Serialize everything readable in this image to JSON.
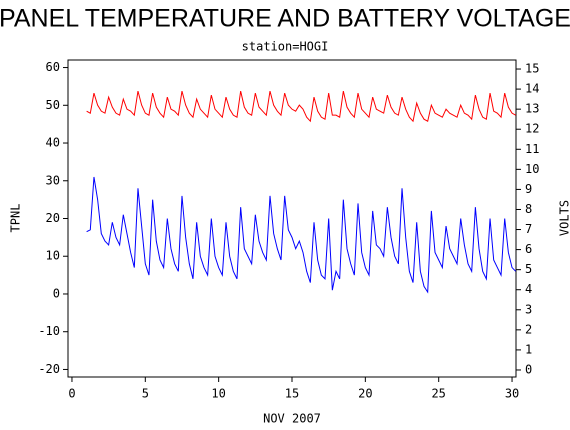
{
  "chart_data": {
    "type": "line",
    "title": "PANEL TEMPERATURE AND BATTERY VOLTAGE",
    "subtitle": "station=HOGI",
    "x_label": "NOV 2007",
    "y_label": "TPNL",
    "y2_label": "VOLTS",
    "xlim": [
      -0.27,
      30.27
    ],
    "xticks": [
      0,
      5,
      10,
      15,
      20,
      25,
      30
    ],
    "ylim": [
      -22,
      62
    ],
    "yticks": [
      -20,
      -10,
      0,
      10,
      20,
      30,
      40,
      50,
      60
    ],
    "y2lim": [
      -0.35,
      15.45
    ],
    "y2ticks": [
      0,
      1,
      2,
      3,
      4,
      5,
      6,
      7,
      8,
      9,
      10,
      11,
      12,
      13,
      14,
      15
    ],
    "x": [
      1,
      1.25,
      1.5,
      1.75,
      2,
      2.25,
      2.5,
      2.75,
      3,
      3.25,
      3.5,
      3.75,
      4,
      4.25,
      4.5,
      4.75,
      5,
      5.25,
      5.5,
      5.75,
      6,
      6.25,
      6.5,
      6.75,
      7,
      7.25,
      7.5,
      7.75,
      8,
      8.25,
      8.5,
      8.75,
      9,
      9.25,
      9.5,
      9.75,
      10,
      10.25,
      10.5,
      10.75,
      11,
      11.25,
      11.5,
      11.75,
      12,
      12.25,
      12.5,
      12.75,
      13,
      13.25,
      13.5,
      13.75,
      14,
      14.25,
      14.5,
      14.75,
      15,
      15.25,
      15.5,
      15.75,
      16,
      16.25,
      16.5,
      16.75,
      17,
      17.25,
      17.5,
      17.75,
      18,
      18.25,
      18.5,
      18.75,
      19,
      19.25,
      19.5,
      19.75,
      20,
      20.25,
      20.5,
      20.75,
      21,
      21.25,
      21.5,
      21.75,
      22,
      22.25,
      22.5,
      22.75,
      23,
      23.25,
      23.5,
      23.75,
      24,
      24.25,
      24.5,
      24.75,
      25,
      25.25,
      25.5,
      25.75,
      26,
      26.25,
      26.5,
      26.75,
      27,
      27.25,
      27.5,
      27.75,
      28,
      28.25,
      28.5,
      28.75,
      29,
      29.25,
      29.5,
      29.75,
      30,
      30.25
    ],
    "series": [
      {
        "color": "#0000ff",
        "values": [
          16.5,
          17,
          31,
          25,
          16,
          14,
          13,
          19,
          15,
          13,
          21,
          16,
          11,
          7,
          28,
          18,
          8,
          5,
          25,
          14,
          9,
          7,
          20,
          12,
          8,
          6,
          26,
          15,
          8,
          4,
          19,
          10,
          7,
          5,
          20,
          10,
          7,
          5,
          19,
          10,
          6,
          4,
          23,
          12,
          10,
          8,
          21,
          14,
          11,
          9,
          26,
          16,
          12,
          9,
          26,
          17,
          15,
          12,
          14,
          11,
          6,
          3,
          19,
          9,
          5,
          4,
          20,
          1,
          6,
          4,
          25,
          12,
          8,
          5,
          24,
          11,
          7,
          5,
          22,
          13,
          12,
          10,
          23,
          15,
          10,
          8,
          28,
          15,
          6,
          3,
          19,
          6,
          2,
          0.5,
          22,
          11,
          9,
          7,
          18,
          12,
          10,
          8,
          20,
          13,
          8,
          6,
          23,
          12,
          6,
          4,
          20,
          9,
          7,
          5,
          20,
          11,
          7,
          6
        ]
      },
      {
        "color": "#ff0000",
        "axis": "y2",
        "values": [
          12.9,
          12.8,
          13.8,
          13.2,
          12.9,
          12.8,
          13.6,
          13.1,
          12.8,
          12.7,
          13.5,
          13.0,
          12.9,
          12.7,
          13.9,
          13.2,
          12.8,
          12.7,
          13.8,
          13.1,
          12.8,
          12.6,
          13.6,
          13.0,
          12.9,
          12.7,
          13.9,
          13.2,
          12.8,
          12.6,
          13.5,
          13.0,
          12.8,
          12.6,
          13.7,
          13.0,
          12.8,
          12.6,
          13.6,
          13.0,
          12.7,
          12.6,
          13.9,
          13.1,
          12.8,
          12.7,
          13.8,
          13.1,
          12.9,
          12.7,
          13.9,
          13.2,
          12.9,
          12.7,
          13.8,
          13.2,
          13.0,
          12.9,
          13.2,
          13.0,
          12.6,
          12.4,
          13.6,
          12.9,
          12.6,
          12.5,
          13.8,
          12.7,
          12.7,
          12.6,
          13.9,
          13.1,
          12.8,
          12.6,
          13.8,
          13.0,
          12.8,
          12.6,
          13.6,
          13.0,
          12.9,
          12.8,
          13.7,
          13.1,
          12.8,
          12.7,
          13.6,
          13.0,
          12.6,
          12.4,
          13.3,
          12.8,
          12.5,
          12.4,
          13.2,
          12.8,
          12.7,
          12.6,
          13.0,
          12.8,
          12.7,
          12.6,
          13.2,
          12.8,
          12.7,
          12.5,
          13.7,
          13.0,
          12.6,
          12.5,
          13.8,
          12.9,
          12.8,
          12.6,
          13.8,
          13.1,
          12.8,
          12.7
        ]
      }
    ]
  }
}
